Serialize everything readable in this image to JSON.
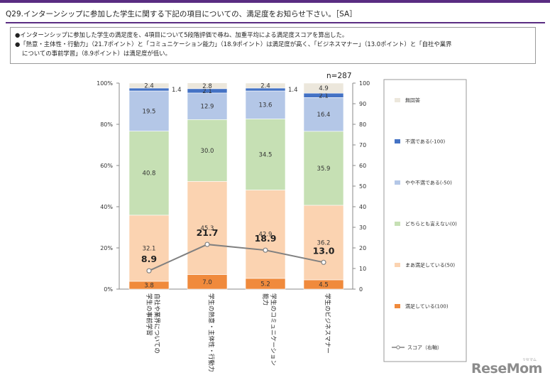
{
  "header": {
    "question": "Q29.インターンシップに参加した学生に関する下記の項目についての、満足度をお知らせ下さい。［SA］"
  },
  "summary": {
    "line1": "●インターンシップに参加した学生の満足度を、4項目について5段階評価で尋ね、加重平均による満足度スコアを算出した。",
    "line2": "●「熱意・主体性・行動力」（21.7ポイント）と「コミュニケーション能力」（18.9ポイント）は満足度が高く、「ビジネスマナー」（13.0ポイント）と「自社や業界",
    "line3": "についての事前学習」（8.9ポイント）は満足度が低い。"
  },
  "logo": {
    "text": "ReseMom",
    "small_text": "リセマム"
  },
  "chart_data": {
    "type": "bar",
    "stacked": true,
    "n_label": "n=287",
    "categories": [
      "自社や業界についての\n学生の事前学習",
      "学生の熱意・主体性・行動力",
      "学生のコミュニケーション\n能力",
      "学生のビジネスマナー"
    ],
    "series": [
      {
        "name": "満足している(100)",
        "color": "#f08a3c",
        "values": [
          3.8,
          7.0,
          5.2,
          4.5
        ]
      },
      {
        "name": "まあ満足している(50)",
        "color": "#fbd3b1",
        "values": [
          32.1,
          45.3,
          42.9,
          36.2
        ]
      },
      {
        "name": "どちらとも言えない(0)",
        "color": "#c6e0b4",
        "values": [
          40.8,
          30.0,
          34.5,
          35.9
        ]
      },
      {
        "name": "やや不満である(-50)",
        "color": "#b4c7e7",
        "values": [
          19.5,
          12.9,
          13.6,
          16.4
        ]
      },
      {
        "name": "不満である(-100)",
        "color": "#4472c4",
        "values": [
          1.4,
          2.1,
          1.4,
          2.1
        ]
      },
      {
        "name": "無回答",
        "color": "#ece7dc",
        "values": [
          2.4,
          2.8,
          2.4,
          4.9
        ]
      }
    ],
    "score": {
      "name": "スコア（右軸）",
      "color": "#808080",
      "values": [
        8.9,
        21.7,
        18.9,
        13.0
      ]
    },
    "left_axis": {
      "range": [
        0,
        100
      ],
      "ticks": [
        "0%",
        "20%",
        "40%",
        "60%",
        "80%",
        "100%"
      ]
    },
    "right_axis": {
      "range": [
        0,
        100
      ],
      "ticks": [
        "0",
        "10",
        "20",
        "30",
        "40",
        "50",
        "60",
        "70",
        "80",
        "90",
        "100"
      ]
    }
  }
}
